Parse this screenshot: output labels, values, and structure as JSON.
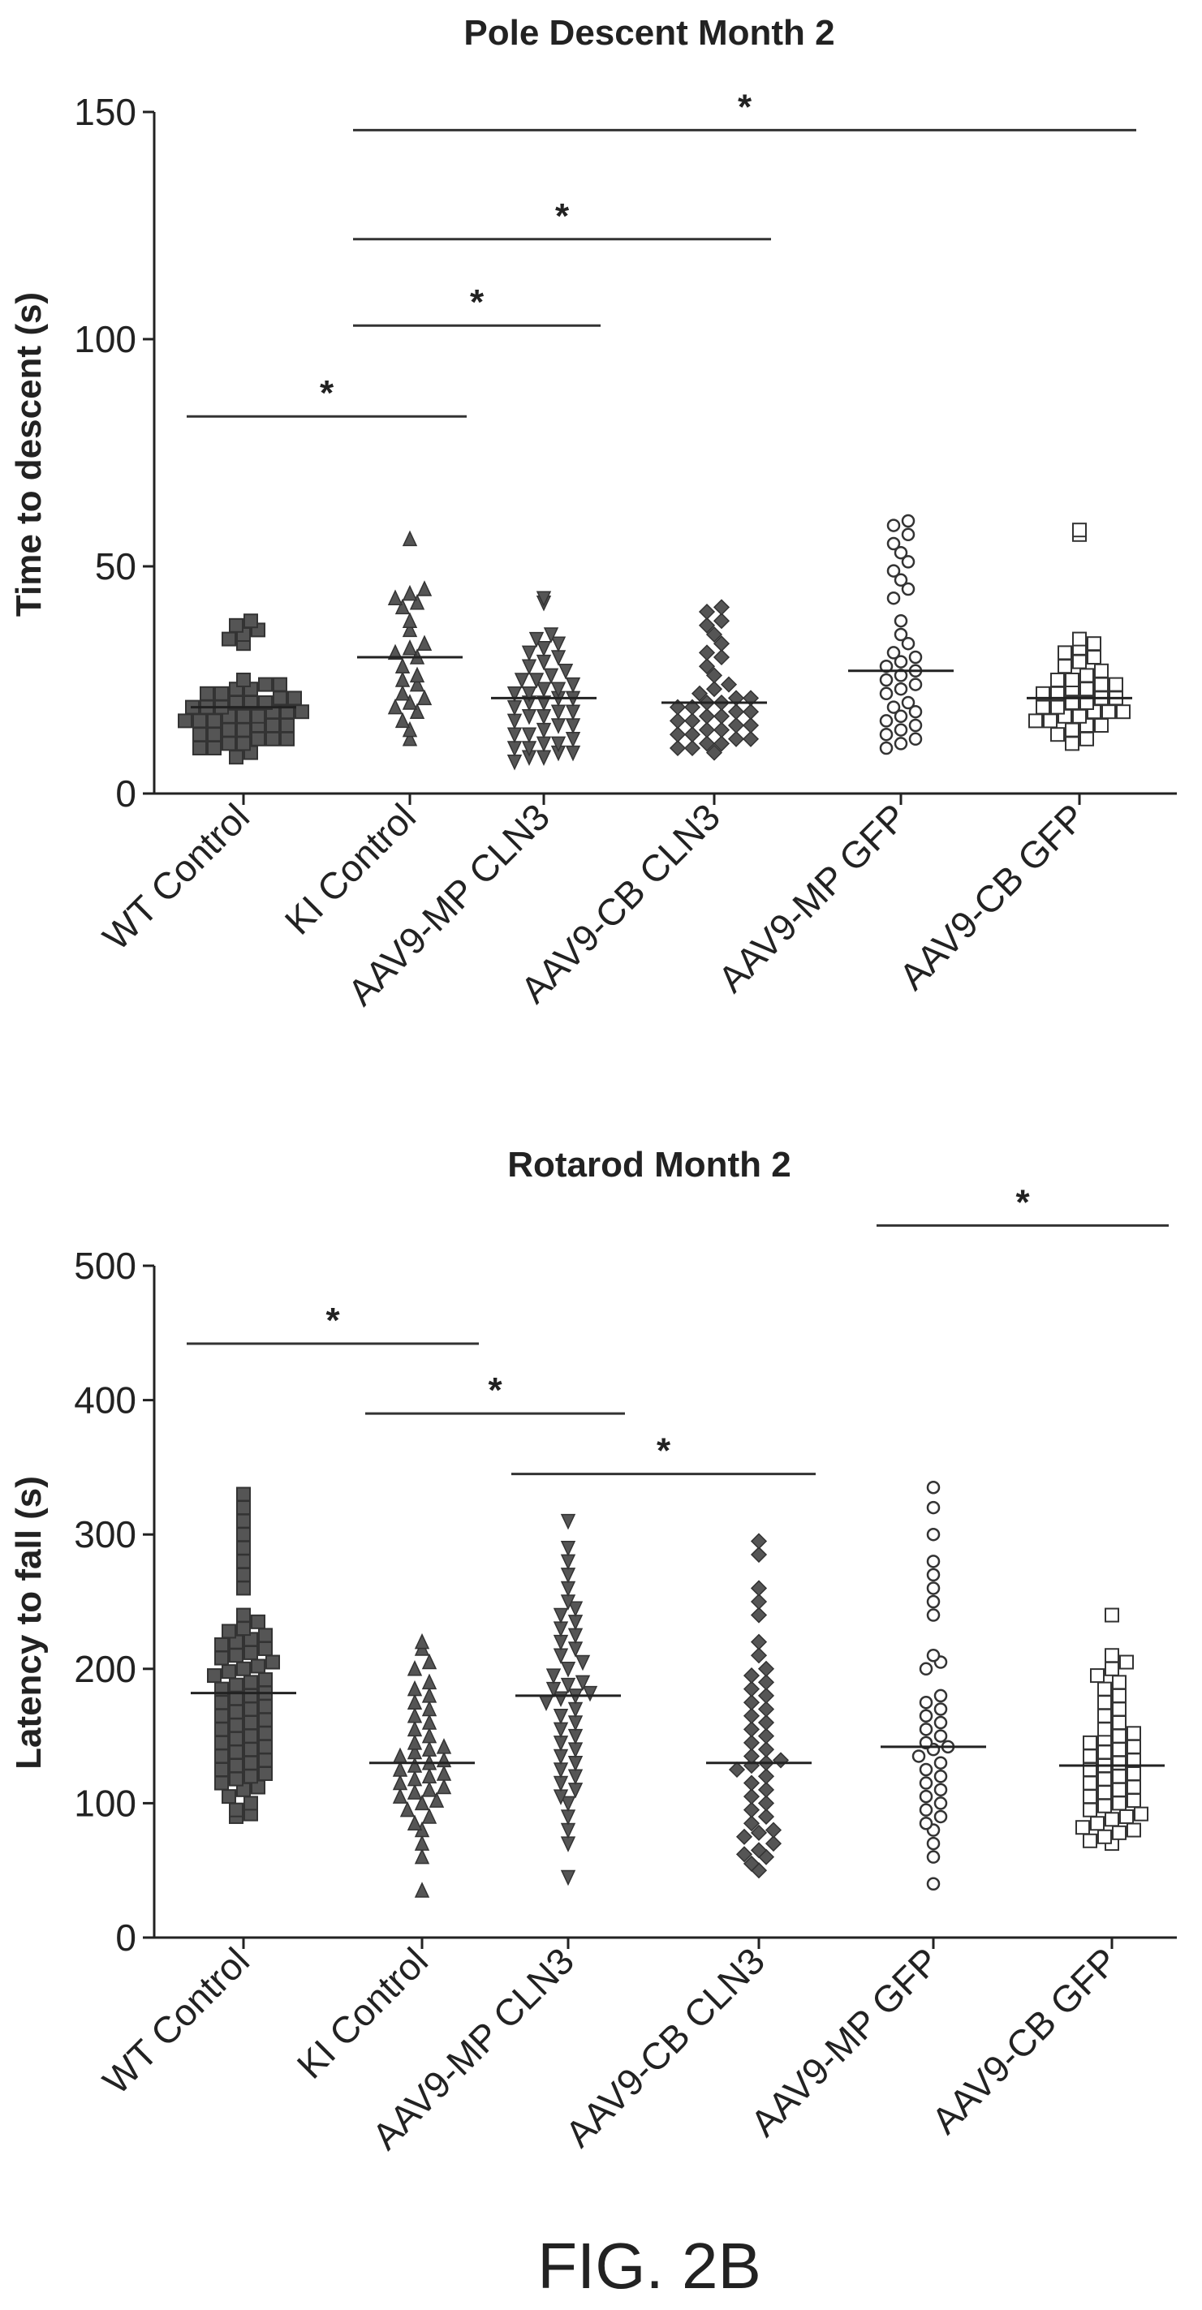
{
  "figure_label": "FIG. 2B",
  "chart_data": [
    {
      "type": "scatter",
      "title": "Pole Descent Month 2",
      "ylabel": "Time to descent (s)",
      "xlabel": "",
      "ylim": [
        0,
        150
      ],
      "yticks": [
        0,
        50,
        100,
        150
      ],
      "categories": [
        "WT Control",
        "KI Control",
        "AAV9-MP CLN3",
        "AAV9-CB CLN3",
        "AAV9-MP GFP",
        "AAV9-CB GFP"
      ],
      "markers": [
        "filled-square",
        "filled-triangle-up",
        "filled-triangle-down",
        "filled-diamond",
        "open-circle",
        "open-square"
      ],
      "means": [
        19,
        30,
        21,
        20,
        27,
        21
      ],
      "series": [
        {
          "values": [
            8,
            9,
            10,
            10,
            11,
            11,
            12,
            12,
            12,
            13,
            13,
            14,
            14,
            15,
            15,
            15,
            16,
            16,
            16,
            17,
            17,
            17,
            18,
            18,
            18,
            19,
            19,
            19,
            20,
            20,
            20,
            21,
            21,
            22,
            22,
            23,
            23,
            24,
            24,
            25,
            33,
            34,
            35,
            36,
            37,
            38
          ]
        },
        {
          "values": [
            12,
            14,
            16,
            18,
            19,
            20,
            21,
            22,
            24,
            25,
            26,
            28,
            30,
            31,
            32,
            33,
            36,
            38,
            41,
            42,
            43,
            44,
            45,
            56
          ]
        },
        {
          "values": [
            7,
            8,
            8,
            9,
            9,
            10,
            10,
            11,
            11,
            12,
            13,
            13,
            14,
            15,
            15,
            16,
            17,
            17,
            18,
            18,
            19,
            20,
            20,
            21,
            21,
            22,
            22,
            23,
            23,
            24,
            25,
            25,
            26,
            27,
            28,
            29,
            30,
            31,
            32,
            33,
            34,
            35,
            42,
            43
          ]
        },
        {
          "values": [
            9,
            10,
            10,
            11,
            11,
            12,
            12,
            13,
            13,
            14,
            14,
            15,
            15,
            16,
            16,
            17,
            17,
            18,
            18,
            19,
            19,
            20,
            20,
            21,
            21,
            22,
            23,
            24,
            26,
            28,
            30,
            31,
            33,
            35,
            37,
            38,
            40,
            41
          ]
        },
        {
          "values": [
            10,
            11,
            12,
            13,
            14,
            15,
            16,
            17,
            18,
            19,
            20,
            22,
            23,
            24,
            25,
            26,
            27,
            28,
            29,
            30,
            31,
            33,
            35,
            38,
            43,
            45,
            47,
            49,
            51,
            53,
            55,
            57,
            59,
            60
          ]
        },
        {
          "values": [
            11,
            12,
            13,
            14,
            15,
            15,
            16,
            16,
            17,
            17,
            18,
            18,
            18,
            19,
            19,
            20,
            20,
            21,
            21,
            22,
            22,
            23,
            23,
            24,
            24,
            25,
            25,
            26,
            27,
            28,
            29,
            30,
            31,
            32,
            33,
            34,
            57,
            58
          ]
        }
      ],
      "significance": [
        {
          "from": 0,
          "to": 1,
          "y": 83,
          "label": "*"
        },
        {
          "from": 1,
          "to": 2,
          "y": 103,
          "label": "*"
        },
        {
          "from": 1,
          "to": 3,
          "y": 122,
          "label": "*"
        },
        {
          "from": 1,
          "to": 5,
          "y": 146,
          "label": "*"
        }
      ]
    },
    {
      "type": "scatter",
      "title": "Rotarod Month 2",
      "ylabel": "Latency to fall (s)",
      "xlabel": "",
      "ylim": [
        0,
        500
      ],
      "yticks": [
        0,
        100,
        200,
        300,
        400,
        500
      ],
      "categories": [
        "WT Control",
        "KI Control",
        "AAV9-MP CLN3",
        "AAV9-CB CLN3",
        "AAV9-MP GFP",
        "AAV9-CB GFP"
      ],
      "markers": [
        "filled-square",
        "filled-triangle-up",
        "filled-triangle-down",
        "filled-diamond",
        "open-circle",
        "open-square"
      ],
      "means": [
        182,
        130,
        180,
        130,
        142,
        128
      ],
      "series": [
        {
          "values": [
            90,
            92,
            95,
            100,
            105,
            110,
            112,
            115,
            118,
            120,
            122,
            125,
            128,
            130,
            132,
            135,
            138,
            140,
            142,
            145,
            148,
            150,
            152,
            155,
            158,
            160,
            162,
            165,
            168,
            170,
            172,
            175,
            178,
            180,
            182,
            185,
            188,
            190,
            192,
            195,
            198,
            200,
            202,
            205,
            208,
            210,
            212,
            215,
            218,
            220,
            222,
            225,
            228,
            230,
            235,
            240,
            260,
            270,
            280,
            290,
            300,
            310,
            320,
            330
          ]
        },
        {
          "values": [
            35,
            60,
            70,
            80,
            85,
            90,
            95,
            100,
            102,
            105,
            108,
            110,
            112,
            115,
            118,
            120,
            122,
            125,
            128,
            130,
            132,
            135,
            138,
            140,
            142,
            145,
            150,
            155,
            160,
            165,
            170,
            175,
            180,
            185,
            190,
            200,
            205,
            215,
            220
          ]
        },
        {
          "values": [
            45,
            70,
            80,
            90,
            100,
            105,
            110,
            115,
            120,
            125,
            130,
            135,
            140,
            145,
            150,
            155,
            160,
            165,
            170,
            175,
            178,
            180,
            182,
            185,
            188,
            190,
            195,
            200,
            205,
            210,
            215,
            220,
            225,
            230,
            235,
            240,
            245,
            250,
            260,
            270,
            280,
            290,
            310
          ]
        },
        {
          "values": [
            50,
            55,
            60,
            62,
            65,
            70,
            75,
            78,
            80,
            85,
            90,
            95,
            100,
            105,
            110,
            115,
            120,
            125,
            128,
            130,
            132,
            135,
            140,
            145,
            150,
            155,
            160,
            165,
            170,
            175,
            180,
            185,
            190,
            195,
            200,
            210,
            220,
            240,
            250,
            260,
            285,
            295
          ]
        },
        {
          "values": [
            40,
            60,
            70,
            80,
            85,
            90,
            95,
            100,
            105,
            110,
            115,
            120,
            125,
            130,
            135,
            140,
            142,
            145,
            150,
            155,
            160,
            165,
            170,
            175,
            180,
            200,
            205,
            210,
            240,
            250,
            260,
            270,
            280,
            300,
            320,
            335
          ]
        },
        {
          "values": [
            70,
            72,
            75,
            78,
            80,
            82,
            85,
            88,
            90,
            92,
            95,
            98,
            100,
            102,
            105,
            108,
            110,
            112,
            115,
            118,
            120,
            122,
            125,
            128,
            130,
            132,
            135,
            138,
            140,
            142,
            145,
            148,
            150,
            152,
            155,
            160,
            165,
            170,
            175,
            180,
            185,
            190,
            195,
            200,
            205,
            210,
            240
          ]
        }
      ],
      "significance": [
        {
          "from": 0,
          "to": 1,
          "y": 442,
          "label": "*"
        },
        {
          "from": 1,
          "to": 2,
          "y": 390,
          "label": "*"
        },
        {
          "from": 2,
          "to": 3,
          "y": 345,
          "label": "*"
        },
        {
          "from": 4,
          "to": 5,
          "y": 530,
          "label": "*"
        }
      ]
    }
  ]
}
